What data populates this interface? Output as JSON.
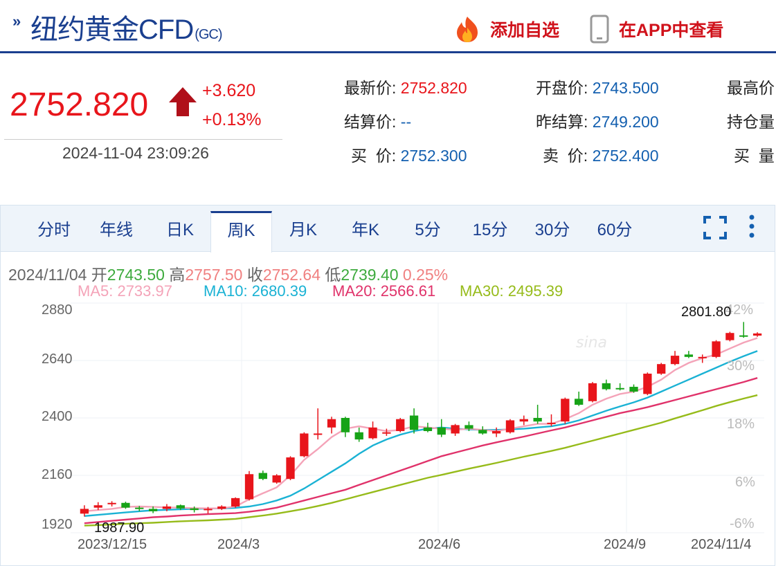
{
  "header": {
    "arrow": "»",
    "title": "纽约黄金CFD",
    "sub": "(GC)",
    "add_watch": "添加自选",
    "app_view": "在APP中查看"
  },
  "quote": {
    "price": "2752.820",
    "change": "+3.620",
    "change_pct": "+0.13%",
    "timestamp": "2024-11-04 23:09:26",
    "fields": {
      "latest_label": "最新价:",
      "latest": "2752.820",
      "open_label": "开盘价:",
      "open": "2743.500",
      "high_label": "最高价",
      "settle_label": "结算价:",
      "settle": "--",
      "prev_settle_label": "昨结算:",
      "prev_settle": "2749.200",
      "oi_label": "持仓量",
      "bid_label": "买  价:",
      "bid": "2752.300",
      "ask_label": "卖  价:",
      "ask": "2752.400",
      "bid_vol_label": "买  量"
    }
  },
  "tabs": [
    "分时",
    "年线",
    "日K",
    "周K",
    "月K",
    "年K",
    "5分",
    "15分",
    "30分",
    "60分"
  ],
  "active_tab": "周K",
  "ohlc": {
    "date": "2024/11/04",
    "open_label": "开",
    "open": "2743.50",
    "high_label": "高",
    "high": "2757.50",
    "close_label": "收",
    "close": "2752.64",
    "low_label": "低",
    "low": "2739.40",
    "pct": "0.25%"
  },
  "ma": {
    "ma5": "MA5: 2733.97",
    "ma10": "MA10: 2680.39",
    "ma20": "MA20: 2566.61",
    "ma30": "MA30: 2495.39"
  },
  "colors": {
    "up": "#e8151b",
    "down": "#17a317",
    "ma5": "#f4a3b8",
    "ma10": "#1ab2d4",
    "ma20": "#e0326a",
    "ma30": "#96bb1a",
    "navy": "#1a3f8f"
  },
  "chart_data": {
    "type": "candlestick",
    "y_ticks": [
      "2880",
      "2640",
      "2400",
      "2160",
      "1920"
    ],
    "y_right_ticks": [
      "42%",
      "30%",
      "18%",
      "6%",
      "-6%"
    ],
    "x_ticks": [
      "2023/12/15",
      "2024/3",
      "2024/6",
      "2024/9",
      "2024/11/4"
    ],
    "max_label": "2801.80",
    "min_label": "1987.90",
    "ylim": [
      1920,
      2880
    ],
    "candles": [
      [
        2000,
        2020,
        1988,
        2035
      ],
      [
        2025,
        2035,
        2015,
        2048
      ],
      [
        2040,
        2045,
        2030,
        2052
      ],
      [
        2045,
        2025,
        2020,
        2050
      ],
      [
        2025,
        2020,
        2010,
        2032
      ],
      [
        2020,
        2010,
        2002,
        2030
      ],
      [
        2020,
        2030,
        2010,
        2040
      ],
      [
        2035,
        2022,
        2015,
        2038
      ],
      [
        2022,
        2015,
        2005,
        2030
      ],
      [
        2015,
        2020,
        2000,
        2028
      ],
      [
        2020,
        2030,
        2015,
        2035
      ],
      [
        2030,
        2065,
        2025,
        2068
      ],
      [
        2060,
        2165,
        2055,
        2178
      ],
      [
        2170,
        2145,
        2140,
        2180
      ],
      [
        2130,
        2160,
        2125,
        2165
      ],
      [
        2145,
        2235,
        2140,
        2240
      ],
      [
        2240,
        2335,
        2235,
        2340
      ],
      [
        2330,
        2335,
        2310,
        2440
      ],
      [
        2360,
        2395,
        2335,
        2405
      ],
      [
        2400,
        2340,
        2320,
        2405
      ],
      [
        2340,
        2310,
        2300,
        2360
      ],
      [
        2315,
        2360,
        2310,
        2385
      ],
      [
        2340,
        2340,
        2325,
        2355
      ],
      [
        2345,
        2395,
        2340,
        2400
      ],
      [
        2410,
        2350,
        2335,
        2440
      ],
      [
        2360,
        2345,
        2340,
        2380
      ],
      [
        2360,
        2330,
        2320,
        2395
      ],
      [
        2335,
        2370,
        2325,
        2375
      ],
      [
        2370,
        2355,
        2345,
        2385
      ],
      [
        2350,
        2335,
        2330,
        2365
      ],
      [
        2335,
        2345,
        2320,
        2360
      ],
      [
        2340,
        2390,
        2335,
        2395
      ],
      [
        2385,
        2395,
        2370,
        2410
      ],
      [
        2400,
        2385,
        2375,
        2455
      ],
      [
        2375,
        2380,
        2365,
        2415
      ],
      [
        2385,
        2480,
        2375,
        2485
      ],
      [
        2480,
        2455,
        2450,
        2510
      ],
      [
        2470,
        2545,
        2465,
        2550
      ],
      [
        2545,
        2520,
        2515,
        2560
      ],
      [
        2525,
        2520,
        2515,
        2545
      ],
      [
        2530,
        2510,
        2505,
        2540
      ],
      [
        2500,
        2585,
        2495,
        2590
      ],
      [
        2585,
        2625,
        2580,
        2630
      ],
      [
        2625,
        2660,
        2620,
        2680
      ],
      [
        2665,
        2655,
        2650,
        2680
      ],
      [
        2650,
        2655,
        2630,
        2665
      ],
      [
        2655,
        2720,
        2650,
        2725
      ],
      [
        2725,
        2755,
        2720,
        2760
      ],
      [
        2745,
        2740,
        2735,
        2801
      ],
      [
        2744,
        2753,
        2739,
        2758
      ]
    ],
    "ma5": [
      2010,
      2015,
      2020,
      2028,
      2030,
      2028,
      2026,
      2025,
      2023,
      2022,
      2022,
      2030,
      2060,
      2085,
      2110,
      2160,
      2225,
      2270,
      2320,
      2355,
      2365,
      2355,
      2345,
      2350,
      2365,
      2360,
      2355,
      2350,
      2355,
      2350,
      2345,
      2355,
      2365,
      2375,
      2375,
      2395,
      2420,
      2455,
      2480,
      2500,
      2510,
      2530,
      2560,
      2600,
      2630,
      2650,
      2665,
      2690,
      2715,
      2734
    ],
    "ma10": [
      1990,
      1995,
      2000,
      2005,
      2010,
      2014,
      2016,
      2018,
      2020,
      2021,
      2022,
      2024,
      2030,
      2040,
      2055,
      2075,
      2105,
      2140,
      2175,
      2210,
      2250,
      2285,
      2310,
      2330,
      2345,
      2355,
      2360,
      2355,
      2352,
      2350,
      2350,
      2352,
      2355,
      2360,
      2365,
      2375,
      2390,
      2410,
      2430,
      2448,
      2465,
      2485,
      2510,
      2535,
      2560,
      2585,
      2610,
      2635,
      2658,
      2680
    ],
    "ma20": [
      1960,
      1965,
      1970,
      1975,
      1980,
      1985,
      1988,
      1992,
      1995,
      1998,
      2000,
      2002,
      2008,
      2015,
      2025,
      2040,
      2055,
      2070,
      2085,
      2100,
      2120,
      2140,
      2160,
      2180,
      2200,
      2220,
      2240,
      2255,
      2270,
      2285,
      2298,
      2310,
      2322,
      2335,
      2348,
      2360,
      2375,
      2390,
      2405,
      2420,
      2432,
      2445,
      2460,
      2475,
      2490,
      2505,
      2520,
      2535,
      2550,
      2567
    ],
    "ma30": [
      1950,
      1952,
      1955,
      1958,
      1960,
      1962,
      1965,
      1968,
      1970,
      1972,
      1975,
      1978,
      1985,
      1992,
      2000,
      2010,
      2020,
      2032,
      2045,
      2060,
      2075,
      2090,
      2105,
      2120,
      2135,
      2150,
      2162,
      2175,
      2188,
      2200,
      2212,
      2225,
      2238,
      2250,
      2262,
      2275,
      2290,
      2305,
      2320,
      2335,
      2350,
      2365,
      2380,
      2398,
      2415,
      2432,
      2450,
      2466,
      2481,
      2495
    ]
  }
}
